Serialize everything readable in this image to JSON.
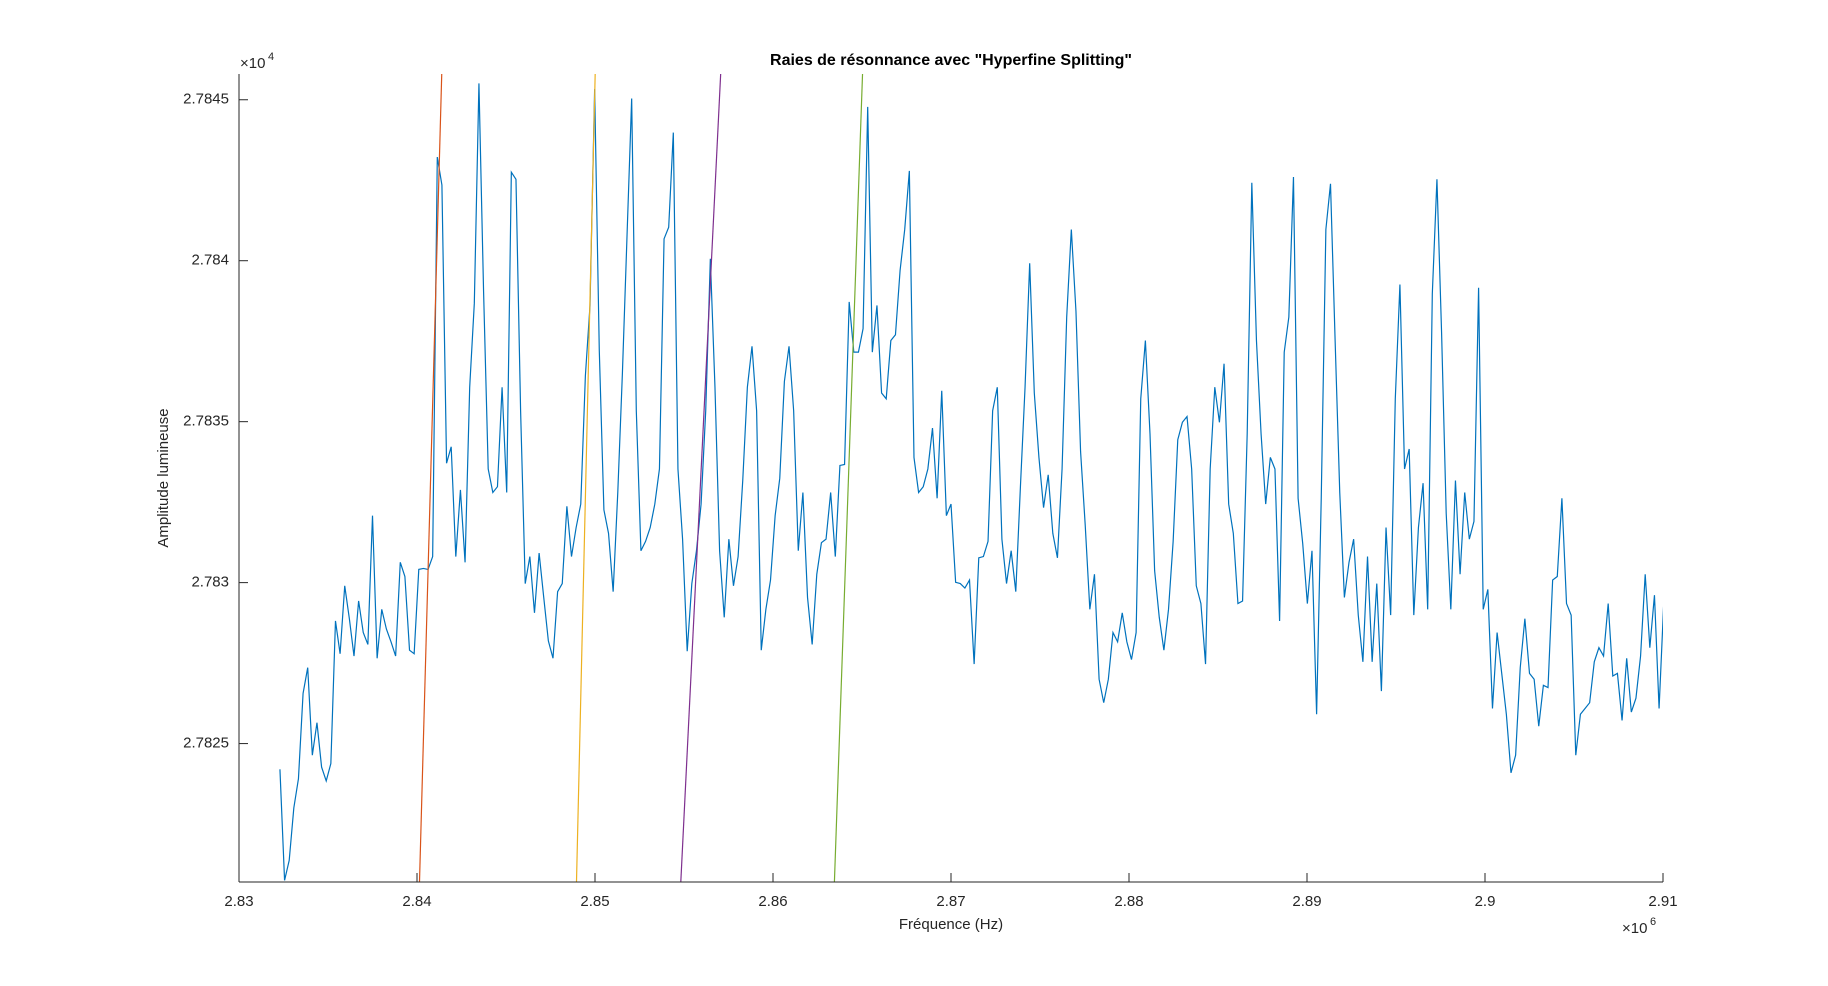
{
  "chart_data": {
    "type": "line",
    "title": "Raies de résonnance avec \"Hyperfine Splitting\"",
    "x_label": "Fréquence (Hz)",
    "y_label": "Amplitude lumineuse",
    "x_scale_base": "×10",
    "x_scale_power": "6",
    "y_scale_base": "×10",
    "y_scale_power": "4",
    "xlim": [
      2.83,
      2.91
    ],
    "xticks": [
      2.83,
      2.84,
      2.85,
      2.86,
      2.87,
      2.88,
      2.89,
      2.9,
      2.91
    ],
    "ylim": [
      2.78207,
      2.78458
    ],
    "yticks": [
      2.7825,
      2.783,
      2.7835,
      2.784,
      2.7845
    ],
    "grid": false,
    "series": [
      {
        "color": "#0072BD",
        "x": [
          2.8323,
          2.83256,
          2.83282,
          2.83308,
          2.83334,
          2.8336,
          2.83386,
          2.83412,
          2.83438,
          2.83464,
          2.8349,
          2.83516,
          2.83542,
          2.83568,
          2.83594,
          2.8362,
          2.83646,
          2.83672,
          2.83698,
          2.83724,
          2.8375,
          2.83776,
          2.83802,
          2.83828,
          2.83854,
          2.8388,
          2.83906,
          2.83932,
          2.83958,
          2.83984,
          2.8401,
          2.84036,
          2.84062,
          2.84088,
          2.84114,
          2.8414,
          2.84166,
          2.84192,
          2.84218,
          2.84244,
          2.8427,
          2.84296,
          2.84322,
          2.84348,
          2.84374,
          2.844,
          2.84426,
          2.84452,
          2.84478,
          2.84504,
          2.8453,
          2.84556,
          2.84582,
          2.84608,
          2.84634,
          2.8466,
          2.84686,
          2.84712,
          2.84738,
          2.84764,
          2.8479,
          2.84816,
          2.84842,
          2.84868,
          2.84894,
          2.8492,
          2.84946,
          2.84972,
          2.84998,
          2.85024,
          2.8505,
          2.85076,
          2.85102,
          2.85128,
          2.85154,
          2.8518,
          2.85206,
          2.85232,
          2.85258,
          2.85284,
          2.8531,
          2.85336,
          2.85362,
          2.85388,
          2.85414,
          2.8544,
          2.85466,
          2.85492,
          2.85518,
          2.85544,
          2.8557,
          2.85596,
          2.85622,
          2.85648,
          2.85674,
          2.857,
          2.85726,
          2.85752,
          2.85778,
          2.85804,
          2.8583,
          2.85856,
          2.85882,
          2.85908,
          2.85934,
          2.8596,
          2.85986,
          2.86012,
          2.86038,
          2.86064,
          2.8609,
          2.86116,
          2.86142,
          2.86168,
          2.86194,
          2.8622,
          2.86246,
          2.86272,
          2.86298,
          2.86324,
          2.8635,
          2.86376,
          2.86402,
          2.86428,
          2.86454,
          2.8648,
          2.86506,
          2.86532,
          2.86558,
          2.86584,
          2.8661,
          2.86636,
          2.86662,
          2.86688,
          2.86714,
          2.8674,
          2.86766,
          2.86792,
          2.86818,
          2.86844,
          2.8687,
          2.86896,
          2.86922,
          2.86948,
          2.86974,
          2.87,
          2.87026,
          2.87052,
          2.87078,
          2.87104,
          2.8713,
          2.87156,
          2.87182,
          2.87208,
          2.87234,
          2.8726,
          2.87286,
          2.87312,
          2.87338,
          2.87364,
          2.8739,
          2.87416,
          2.87442,
          2.87468,
          2.87494,
          2.8752,
          2.87546,
          2.87572,
          2.87598,
          2.87624,
          2.8765,
          2.87676,
          2.87702,
          2.87728,
          2.87754,
          2.8778,
          2.87806,
          2.87832,
          2.87858,
          2.87884,
          2.8791,
          2.87936,
          2.87962,
          2.87988,
          2.88014,
          2.8804,
          2.88066,
          2.88092,
          2.88118,
          2.88144,
          2.8817,
          2.88196,
          2.88222,
          2.88248,
          2.88274,
          2.883,
          2.88326,
          2.88352,
          2.88378,
          2.88404,
          2.8843,
          2.88456,
          2.88482,
          2.88508,
          2.88534,
          2.8856,
          2.88586,
          2.88612,
          2.88638,
          2.88664,
          2.8869,
          2.88716,
          2.88742,
          2.88768,
          2.88794,
          2.8882,
          2.88846,
          2.88872,
          2.88898,
          2.88924,
          2.8895,
          2.88976,
          2.89002,
          2.89028,
          2.89054,
          2.8908,
          2.89106,
          2.89132,
          2.89158,
          2.89184,
          2.8921,
          2.89236,
          2.89262,
          2.89288,
          2.89314,
          2.8934,
          2.89366,
          2.89392,
          2.89418,
          2.89444,
          2.8947,
          2.89496,
          2.89522,
          2.89548,
          2.89574,
          2.896,
          2.89626,
          2.89652,
          2.89678,
          2.89704,
          2.8973,
          2.89756,
          2.89782,
          2.89808,
          2.89834,
          2.8986,
          2.89886,
          2.89912,
          2.89938,
          2.89964,
          2.8999,
          2.90016,
          2.90042,
          2.90068,
          2.90094,
          2.9012,
          2.90146,
          2.90172,
          2.90198,
          2.90224,
          2.9025,
          2.90276,
          2.90302,
          2.90328,
          2.90354,
          2.9038,
          2.90406,
          2.90432,
          2.90458,
          2.90484,
          2.9051,
          2.90536,
          2.90562,
          2.90588,
          2.90614,
          2.9064,
          2.90666,
          2.90692,
          2.90718,
          2.90744,
          2.9077,
          2.90796,
          2.90822,
          2.90848,
          2.90874,
          2.909,
          2.90926,
          2.90952,
          2.90978,
          2.91004
        ],
        "values": [
          2.78242,
          2.782075,
          2.782137,
          2.7823,
          2.782391,
          2.782656,
          2.782736,
          2.782464,
          2.782565,
          2.782427,
          2.782384,
          2.782438,
          2.782881,
          2.782779,
          2.78299,
          2.782888,
          2.782772,
          2.782943,
          2.782845,
          2.782808,
          2.783208,
          2.782765,
          2.782917,
          2.782856,
          2.782816,
          2.782772,
          2.783063,
          2.783019,
          2.78279,
          2.782779,
          2.783041,
          2.783044,
          2.783041,
          2.783081,
          2.784322,
          2.784235,
          2.783371,
          2.783422,
          2.783081,
          2.783288,
          2.783063,
          2.783607,
          2.783868,
          2.784551,
          2.783905,
          2.783353,
          2.78328,
          2.783298,
          2.783607,
          2.78328,
          2.784275,
          2.784253,
          2.783534,
          2.782997,
          2.783081,
          2.782906,
          2.783092,
          2.782954,
          2.782819,
          2.782765,
          2.782972,
          2.782997,
          2.783237,
          2.783081,
          2.783171,
          2.783244,
          2.783643,
          2.783861,
          2.784533,
          2.783723,
          2.783226,
          2.783153,
          2.782972,
          2.78328,
          2.783651,
          2.784079,
          2.784504,
          2.783534,
          2.783099,
          2.783128,
          2.783171,
          2.783244,
          2.783353,
          2.784068,
          2.784104,
          2.784398,
          2.783353,
          2.783135,
          2.782787,
          2.782997,
          2.783099,
          2.783244,
          2.783534,
          2.784006,
          2.783607,
          2.783099,
          2.782892,
          2.783135,
          2.78299,
          2.783081,
          2.783317,
          2.783607,
          2.783734,
          2.783534,
          2.78279,
          2.782917,
          2.783008,
          2.783208,
          2.783324,
          2.783625,
          2.783734,
          2.783534,
          2.783099,
          2.78328,
          2.782954,
          2.782808,
          2.783026,
          2.783124,
          2.783135,
          2.78328,
          2.783081,
          2.783364,
          2.783367,
          2.783872,
          2.783716,
          2.783716,
          2.783789,
          2.784478,
          2.783716,
          2.783861,
          2.783589,
          2.783571,
          2.783752,
          2.78377,
          2.78397,
          2.784097,
          2.784279,
          2.783389,
          2.78328,
          2.783298,
          2.783353,
          2.78348,
          2.783262,
          2.783596,
          2.783208,
          2.783244,
          2.783001,
          2.782997,
          2.782983,
          2.783008,
          2.782747,
          2.783077,
          2.783081,
          2.783128,
          2.783534,
          2.783607,
          2.783135,
          2.782997,
          2.783099,
          2.782972,
          2.783298,
          2.783607,
          2.783992,
          2.783589,
          2.783389,
          2.783233,
          2.783335,
          2.783153,
          2.783077,
          2.783353,
          2.783825,
          2.784097,
          2.783843,
          2.783407,
          2.783179,
          2.782917,
          2.783026,
          2.7827,
          2.782627,
          2.7827,
          2.782845,
          2.782816,
          2.782906,
          2.782816,
          2.782761,
          2.782845,
          2.783571,
          2.783752,
          2.783462,
          2.783037,
          2.782892,
          2.78279,
          2.782917,
          2.783128,
          2.783444,
          2.783498,
          2.783516,
          2.783353,
          2.78299,
          2.782935,
          2.782747,
          2.783353,
          2.783607,
          2.783498,
          2.78368,
          2.783244,
          2.783153,
          2.782935,
          2.782943,
          2.783462,
          2.784242,
          2.783752,
          2.783462,
          2.783244,
          2.783389,
          2.783353,
          2.782881,
          2.783716,
          2.783825,
          2.78426,
          2.783262,
          2.783121,
          2.782935,
          2.783099,
          2.782591,
          2.783262,
          2.784097,
          2.784239,
          2.783752,
          2.78328,
          2.782954,
          2.783063,
          2.783135,
          2.782899,
          2.782754,
          2.783081,
          2.782754,
          2.782997,
          2.782663,
          2.783171,
          2.782899,
          2.783571,
          2.783926,
          2.783353,
          2.783415,
          2.782899,
          2.783171,
          2.783309,
          2.782917,
          2.783897,
          2.784253,
          2.783778,
          2.783215,
          2.782917,
          2.783317,
          2.783026,
          2.78328,
          2.783135,
          2.78319,
          2.783916,
          2.782917,
          2.782979,
          2.782609,
          2.782845,
          2.782718,
          2.782591,
          2.782409,
          2.782464,
          2.782736,
          2.782888,
          2.782718,
          2.7827,
          2.782554,
          2.782681,
          2.782674,
          2.783008,
          2.783019,
          2.783262,
          2.782935,
          2.782899,
          2.782464,
          2.782591,
          2.782609,
          2.782627,
          2.782754,
          2.782798,
          2.782772,
          2.782935,
          2.78271,
          2.782718,
          2.782572,
          2.782765,
          2.782598,
          2.782641,
          2.782772,
          2.783026,
          2.782798,
          2.782961,
          2.782609,
          2.782935
        ]
      },
      {
        "color": "#D95319",
        "x": [
          2.84014,
          2.84139
        ],
        "values": [
          2.78207,
          2.78458
        ]
      },
      {
        "color": "#EDB120",
        "x": [
          2.84896,
          2.85001
        ],
        "values": [
          2.78207,
          2.78458
        ]
      },
      {
        "color": "#7E2F8E",
        "x": [
          2.85482,
          2.85706
        ],
        "values": [
          2.78207,
          2.78458
        ]
      },
      {
        "color": "#77AC30",
        "x": [
          2.86345,
          2.86503
        ],
        "values": [
          2.78207,
          2.78458
        ]
      }
    ]
  }
}
